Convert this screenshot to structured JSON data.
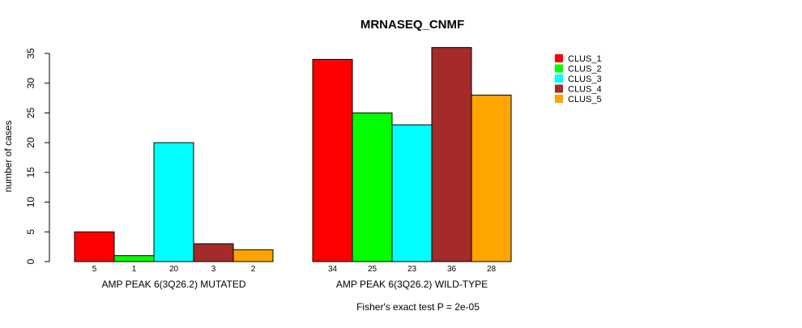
{
  "chart_data": {
    "type": "bar",
    "title": "MRNASEQ_CNMF",
    "ylabel": "number of cases",
    "xlabel": "",
    "ylim": [
      0,
      35
    ],
    "yticks": [
      0,
      5,
      10,
      15,
      20,
      25,
      30,
      35
    ],
    "grid": false,
    "legend_position": "top-right",
    "categories": [
      "AMP PEAK  6(3Q26.2) MUTATED",
      "AMP PEAK  6(3Q26.2) WILD-TYPE"
    ],
    "series": [
      {
        "name": "CLUS_1",
        "color": "#ff0000",
        "values": [
          5,
          34
        ]
      },
      {
        "name": "CLUS_2",
        "color": "#00ff00",
        "values": [
          1,
          25
        ]
      },
      {
        "name": "CLUS_3",
        "color": "#00ffff",
        "values": [
          20,
          23
        ]
      },
      {
        "name": "CLUS_4",
        "color": "#a52a2a",
        "values": [
          3,
          36
        ]
      },
      {
        "name": "CLUS_5",
        "color": "#ffa500",
        "values": [
          2,
          28
        ]
      }
    ],
    "footnote": "Fisher's exact test P = 2e-05"
  }
}
